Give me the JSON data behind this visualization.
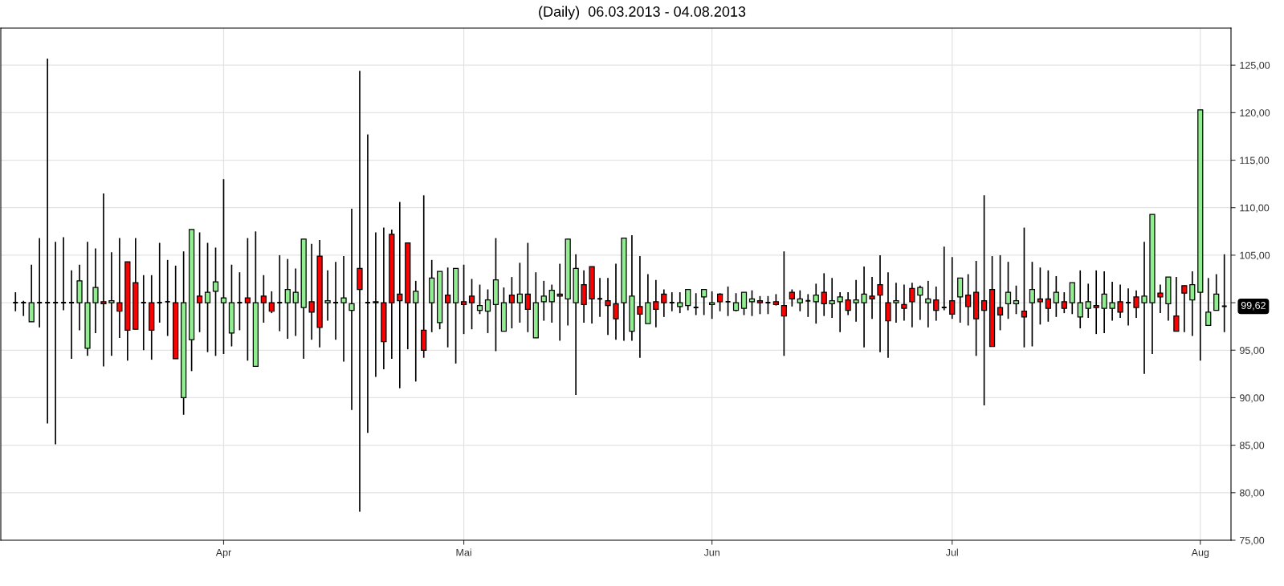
{
  "chart_data": {
    "type": "candlestick",
    "title": "(Daily)  06.03.2013 - 04.08.2013",
    "x": [
      "2013-03-06",
      "2013-03-07",
      "2013-03-08",
      "2013-03-09",
      "2013-03-10",
      "2013-03-11",
      "2013-03-12",
      "2013-03-13",
      "2013-03-14",
      "2013-03-15",
      "2013-03-16",
      "2013-03-17",
      "2013-03-18",
      "2013-03-19",
      "2013-03-20",
      "2013-03-21",
      "2013-03-22",
      "2013-03-23",
      "2013-03-24",
      "2013-03-25",
      "2013-03-26",
      "2013-03-27",
      "2013-03-28",
      "2013-03-29",
      "2013-03-30",
      "2013-03-31",
      "2013-04-01",
      "2013-04-02",
      "2013-04-03",
      "2013-04-04",
      "2013-04-05",
      "2013-04-06",
      "2013-04-07",
      "2013-04-08",
      "2013-04-09",
      "2013-04-10",
      "2013-04-11",
      "2013-04-12",
      "2013-04-13",
      "2013-04-14",
      "2013-04-15",
      "2013-04-16",
      "2013-04-17",
      "2013-04-18",
      "2013-04-19",
      "2013-04-20",
      "2013-04-21",
      "2013-04-22",
      "2013-04-23",
      "2013-04-24",
      "2013-04-25",
      "2013-04-26",
      "2013-04-27",
      "2013-04-28",
      "2013-04-29",
      "2013-04-30",
      "2013-05-01",
      "2013-05-02",
      "2013-05-03",
      "2013-05-04",
      "2013-05-05",
      "2013-05-06",
      "2013-05-07",
      "2013-05-08",
      "2013-05-09",
      "2013-05-10",
      "2013-05-11",
      "2013-05-12",
      "2013-05-13",
      "2013-05-14",
      "2013-05-15",
      "2013-05-16",
      "2013-05-17",
      "2013-05-18",
      "2013-05-19",
      "2013-05-20",
      "2013-05-21",
      "2013-05-22",
      "2013-05-23",
      "2013-05-24",
      "2013-05-25",
      "2013-05-26",
      "2013-05-27",
      "2013-05-28",
      "2013-05-29",
      "2013-05-30",
      "2013-05-31",
      "2013-06-01",
      "2013-06-02",
      "2013-06-03",
      "2013-06-04",
      "2013-06-05",
      "2013-06-06",
      "2013-06-07",
      "2013-06-08",
      "2013-06-09",
      "2013-06-10",
      "2013-06-11",
      "2013-06-12",
      "2013-06-13",
      "2013-06-14",
      "2013-06-15",
      "2013-06-16",
      "2013-06-17",
      "2013-06-18",
      "2013-06-19",
      "2013-06-20",
      "2013-06-21",
      "2013-06-22",
      "2013-06-23",
      "2013-06-24",
      "2013-06-25",
      "2013-06-26",
      "2013-06-27",
      "2013-06-28",
      "2013-06-29",
      "2013-06-30",
      "2013-07-01",
      "2013-07-02",
      "2013-07-03",
      "2013-07-04",
      "2013-07-05",
      "2013-07-06",
      "2013-07-07",
      "2013-07-08",
      "2013-07-09",
      "2013-07-10",
      "2013-07-11",
      "2013-07-12",
      "2013-07-13",
      "2013-07-14",
      "2013-07-15",
      "2013-07-16",
      "2013-07-17",
      "2013-07-18",
      "2013-07-19",
      "2013-07-20",
      "2013-07-21",
      "2013-07-22",
      "2013-07-23",
      "2013-07-24",
      "2013-07-25",
      "2013-07-26",
      "2013-07-27",
      "2013-07-28",
      "2013-07-29",
      "2013-07-30",
      "2013-07-31",
      "2013-08-01",
      "2013-08-02",
      "2013-08-03",
      "2013-08-04"
    ],
    "ohlc": [
      [
        100,
        101.1,
        99.1,
        100
      ],
      [
        100,
        100.2,
        98.6,
        100
      ],
      [
        98.0,
        104.0,
        98.0,
        100
      ],
      [
        100,
        106.8,
        97.4,
        100
      ],
      [
        100,
        125.7,
        87.3,
        100
      ],
      [
        100,
        106.4,
        85.1,
        100
      ],
      [
        100,
        106.9,
        99.2,
        100
      ],
      [
        100,
        103.4,
        94.1,
        100
      ],
      [
        100,
        104.0,
        97.1,
        102.3
      ],
      [
        95.2,
        106.4,
        94.4,
        100
      ],
      [
        100,
        105.7,
        96.8,
        101.6
      ],
      [
        100.1,
        111.5,
        93.3,
        99.9
      ],
      [
        100,
        105.3,
        94.4,
        100.2
      ],
      [
        100,
        106.8,
        96.3,
        99.1
      ],
      [
        104.3,
        104.3,
        93.9,
        97.1
      ],
      [
        102.1,
        106.8,
        97.2,
        97.2
      ],
      [
        100,
        102.9,
        95.0,
        100
      ],
      [
        100,
        102.9,
        94.0,
        97.1
      ],
      [
        100,
        106.3,
        97.9,
        100
      ],
      [
        100.1,
        104.5,
        96.5,
        100.1
      ],
      [
        100,
        103.9,
        94.1,
        94.1
      ],
      [
        90.0,
        105.4,
        88.2,
        100
      ],
      [
        96.1,
        107.7,
        92.8,
        107.7
      ],
      [
        100.7,
        107.4,
        96.9,
        100
      ],
      [
        100,
        106.3,
        94.8,
        101.1
      ],
      [
        101.2,
        105.8,
        94.4,
        102.2
      ],
      [
        100,
        113.0,
        94.6,
        100.5
      ],
      [
        96.8,
        104.0,
        95.4,
        100
      ],
      [
        100,
        103.2,
        97.1,
        100
      ],
      [
        100.5,
        106.8,
        93.9,
        100
      ],
      [
        93.3,
        107.5,
        93.3,
        100
      ],
      [
        100.7,
        102.9,
        97.9,
        100
      ],
      [
        100,
        101.2,
        98.9,
        99.1
      ],
      [
        100,
        105.0,
        97.0,
        100
      ],
      [
        100,
        104.6,
        96.2,
        101.4
      ],
      [
        100,
        103.6,
        96.5,
        101.1
      ],
      [
        99.5,
        106.7,
        94.1,
        106.7
      ],
      [
        100.1,
        106.2,
        96.1,
        99.0
      ],
      [
        104.9,
        106.6,
        95.3,
        97.4
      ],
      [
        100,
        103.4,
        98.1,
        100.2
      ],
      [
        100,
        104.3,
        96.1,
        100
      ],
      [
        100,
        104.9,
        93.8,
        100.5
      ],
      [
        99.2,
        109.9,
        88.7,
        99.9
      ],
      [
        103.6,
        124.4,
        78.0,
        101.4
      ],
      [
        100,
        117.7,
        86.3,
        100
      ],
      [
        100.1,
        107.4,
        92.2,
        100
      ],
      [
        100,
        107.9,
        93.0,
        95.9
      ],
      [
        107.2,
        107.7,
        94.1,
        100
      ],
      [
        100.9,
        110.6,
        91.0,
        100.2
      ],
      [
        106.3,
        106.3,
        95.1,
        100
      ],
      [
        100,
        102.3,
        91.7,
        101.2
      ],
      [
        97.1,
        111.3,
        94.2,
        95.0
      ],
      [
        100,
        104.5,
        96.9,
        102.6
      ],
      [
        97.9,
        103.3,
        97.2,
        103.3
      ],
      [
        100.8,
        103.7,
        95.3,
        100
      ],
      [
        100,
        103.6,
        93.6,
        103.6
      ],
      [
        100.1,
        104.0,
        96.7,
        99.8
      ],
      [
        100.7,
        102.5,
        97.2,
        100
      ],
      [
        99.2,
        101.9,
        98.8,
        99.7
      ],
      [
        99.1,
        101.4,
        96.8,
        100.3
      ],
      [
        99.8,
        106.8,
        94.9,
        102.4
      ],
      [
        97.0,
        101.6,
        97.0,
        100
      ],
      [
        100.8,
        102.7,
        97.3,
        100
      ],
      [
        100,
        104.2,
        97.9,
        100.9
      ],
      [
        100.9,
        106.3,
        96.9,
        99.3
      ],
      [
        96.3,
        103.2,
        96.3,
        100
      ],
      [
        100.1,
        102.3,
        98.1,
        100.7
      ],
      [
        100.1,
        101.9,
        97.9,
        101.3
      ],
      [
        100.9,
        104.1,
        96.0,
        100.7
      ],
      [
        100.4,
        106.7,
        97.6,
        106.7
      ],
      [
        100,
        105.1,
        90.3,
        103.6
      ],
      [
        101.9,
        103.4,
        97.9,
        99.8
      ],
      [
        103.8,
        103.8,
        97.8,
        100.4
      ],
      [
        100.4,
        102.6,
        98.5,
        100.4
      ],
      [
        100.2,
        102.6,
        96.6,
        99.7
      ],
      [
        99.9,
        104.1,
        96.1,
        98.3
      ],
      [
        100,
        106.8,
        96.0,
        106.8
      ],
      [
        97.0,
        107.1,
        96.0,
        100.7
      ],
      [
        99.6,
        104.9,
        94.2,
        98.8
      ],
      [
        97.8,
        103.0,
        97.8,
        100
      ],
      [
        100.1,
        102.4,
        97.4,
        99.3
      ],
      [
        100.9,
        101.4,
        98.5,
        100
      ],
      [
        100,
        101.1,
        99.1,
        100
      ],
      [
        99.6,
        101.1,
        98.9,
        100.0
      ],
      [
        99.7,
        101.4,
        99.2,
        101.4
      ],
      [
        99.5,
        101.0,
        98.7,
        99.5
      ],
      [
        100.6,
        101.4,
        98.7,
        101.4
      ],
      [
        99.8,
        101.2,
        98.3,
        100
      ],
      [
        100.9,
        101.0,
        99.1,
        100.1
      ],
      [
        100.1,
        101.7,
        98.6,
        100.1
      ],
      [
        99.2,
        101.0,
        99.1,
        100
      ],
      [
        99.4,
        101.1,
        98.7,
        101.1
      ],
      [
        100.1,
        101.3,
        98.6,
        100.4
      ],
      [
        100.2,
        100.7,
        98.8,
        100
      ],
      [
        100,
        100.7,
        98.8,
        100
      ],
      [
        100.1,
        100.9,
        99.7,
        99.8
      ],
      [
        99.7,
        105.4,
        94.4,
        98.6
      ],
      [
        101.1,
        101.4,
        99.6,
        100.4
      ],
      [
        100,
        101.3,
        99.1,
        100.4
      ],
      [
        100.2,
        100.9,
        98.5,
        100.2
      ],
      [
        100.1,
        102.0,
        97.8,
        100.8
      ],
      [
        101.1,
        103.1,
        98.6,
        99.9
      ],
      [
        99.9,
        102.6,
        98.4,
        100.2
      ],
      [
        100.1,
        101.1,
        96.9,
        100.6
      ],
      [
        100.3,
        101.1,
        98.7,
        99.2
      ],
      [
        100,
        102.4,
        98.0,
        100.3
      ],
      [
        100,
        103.8,
        95.3,
        100.9
      ],
      [
        100.7,
        102.7,
        98.3,
        100.4
      ],
      [
        101.9,
        105.0,
        94.8,
        100.8
      ],
      [
        100,
        103.2,
        94.2,
        98.1
      ],
      [
        100,
        102.1,
        97.9,
        100.2
      ],
      [
        99.8,
        101.9,
        98.1,
        99.4
      ],
      [
        101.5,
        102.1,
        97.4,
        100.1
      ],
      [
        100.8,
        101.8,
        98.2,
        101.6
      ],
      [
        100,
        102.3,
        97.4,
        100.4
      ],
      [
        100.3,
        101.7,
        98.1,
        99.2
      ],
      [
        99.5,
        105.9,
        99.2,
        99.5
      ],
      [
        100.2,
        104.8,
        98.3,
        98.8
      ],
      [
        100.6,
        102.6,
        97.9,
        102.6
      ],
      [
        100.8,
        103.0,
        97.6,
        99.6
      ],
      [
        101.1,
        104.4,
        94.4,
        98.3
      ],
      [
        100.2,
        111.3,
        89.2,
        99.2
      ],
      [
        101.4,
        104.9,
        95.4,
        95.4
      ],
      [
        99.5,
        105.0,
        97.1,
        98.7
      ],
      [
        99.9,
        104.3,
        98.3,
        101.1
      ],
      [
        99.9,
        101.8,
        98.8,
        100.2
      ],
      [
        99.1,
        107.9,
        95.3,
        98.5
      ],
      [
        100,
        104.3,
        95.4,
        101.4
      ],
      [
        100.4,
        103.7,
        97.7,
        100.1
      ],
      [
        100.4,
        103.4,
        98.0,
        99.4
      ],
      [
        100,
        102.8,
        98.5,
        101.1
      ],
      [
        100.1,
        101.1,
        98.9,
        99.4
      ],
      [
        100,
        102.1,
        98.8,
        102.1
      ],
      [
        98.5,
        103.4,
        97.3,
        100
      ],
      [
        99.4,
        102.0,
        98.4,
        100.1
      ],
      [
        99.7,
        103.4,
        96.7,
        99.5
      ],
      [
        99.4,
        103.3,
        96.8,
        100.9
      ],
      [
        99.4,
        102.2,
        98.1,
        100
      ],
      [
        100.1,
        101.9,
        98.4,
        99.0
      ],
      [
        100,
        101.5,
        97.6,
        100
      ],
      [
        100.6,
        101.3,
        98.4,
        99.5
      ],
      [
        100,
        106.4,
        92.5,
        100.7
      ],
      [
        100,
        109.3,
        94.6,
        109.3
      ],
      [
        101.0,
        101.9,
        98.9,
        100.6
      ],
      [
        99.9,
        102.7,
        98.1,
        102.7
      ],
      [
        98.6,
        102.7,
        97.0,
        97.0
      ],
      [
        101.8,
        101.8,
        96.9,
        101.0
      ],
      [
        100.3,
        103.3,
        96.5,
        101.9
      ],
      [
        101.1,
        120.3,
        93.9,
        120.3
      ],
      [
        97.6,
        102.6,
        97.6,
        99.0
      ],
      [
        99.2,
        103.0,
        99.2,
        100.9
      ],
      [
        99.62,
        105.1,
        96.9,
        99.62
      ]
    ],
    "xlim": [
      "2013-03-04T04:00",
      "2013-08-04T20:00"
    ],
    "xticks": [
      {
        "value": "2013-04-01",
        "label": "Apr"
      },
      {
        "value": "2013-05-01",
        "label": "Mai"
      },
      {
        "value": "2013-06-01",
        "label": "Jun"
      },
      {
        "value": "2013-07-01",
        "label": "Jul"
      },
      {
        "value": "2013-08-01",
        "label": "Aug"
      }
    ],
    "ylim": [
      75,
      128.9
    ],
    "yticks": [
      {
        "value": 75,
        "label": "75,00"
      },
      {
        "value": 80,
        "label": "80,00"
      },
      {
        "value": 85,
        "label": "85,00"
      },
      {
        "value": 90,
        "label": "90,00"
      },
      {
        "value": 95,
        "label": "95,00"
      },
      {
        "value": 100,
        "label": null
      },
      {
        "value": 105,
        "label": "105,00"
      },
      {
        "value": 110,
        "label": "110,00"
      },
      {
        "value": 115,
        "label": "115,00"
      },
      {
        "value": 120,
        "label": "120,00"
      },
      {
        "value": 125,
        "label": "125,00"
      }
    ],
    "grid": true,
    "annotations": [
      {
        "text": "99,62",
        "x": "2013-08-04",
        "y": 99.62
      }
    ]
  }
}
